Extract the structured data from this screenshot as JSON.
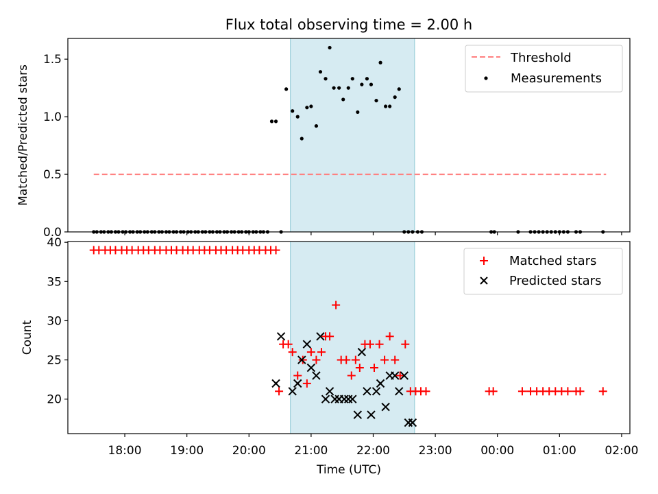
{
  "chart_data": [
    {
      "type": "scatter",
      "title": "Flux total observing time = 2.00 h",
      "xlabel": "",
      "ylabel": "Matched/Predicted stars",
      "xlim": [
        "17:05",
        "26:08"
      ],
      "ylim": [
        0,
        1.68
      ],
      "yticks": [
        0.0,
        0.5,
        1.0,
        1.5
      ],
      "ytick_labels": [
        "0.0",
        "0.5",
        "1.0",
        "1.5"
      ],
      "shaded_region": {
        "from": "20:40",
        "to": "22:40",
        "color": "#add8e6"
      },
      "legend_position": "top-right",
      "legend": [
        "Threshold",
        "Measurements"
      ],
      "threshold": {
        "name": "Threshold",
        "value": 0.5,
        "from": "17:30",
        "to": "25:45",
        "color": "#ff7f7f"
      },
      "series": [
        {
          "name": "Measurements",
          "color": "#000000",
          "x": [
            "17:30",
            "17:33",
            "17:37",
            "17:40",
            "17:44",
            "17:47",
            "17:51",
            "17:54",
            "17:58",
            "18:01",
            "18:05",
            "18:08",
            "18:12",
            "18:15",
            "18:19",
            "18:22",
            "18:26",
            "18:29",
            "18:33",
            "18:36",
            "18:40",
            "18:43",
            "18:47",
            "18:50",
            "18:54",
            "18:57",
            "19:01",
            "19:04",
            "19:08",
            "19:11",
            "19:15",
            "19:18",
            "19:22",
            "19:25",
            "19:29",
            "19:32",
            "19:36",
            "19:39",
            "19:43",
            "19:46",
            "19:50",
            "19:53",
            "19:57",
            "20:00",
            "20:04",
            "20:07",
            "20:11",
            "20:14",
            "20:18",
            "20:22",
            "20:26",
            "20:31",
            "20:36",
            "20:42",
            "20:47",
            "20:51",
            "20:56",
            "21:00",
            "21:05",
            "21:09",
            "21:14",
            "21:18",
            "21:22",
            "21:27",
            "21:31",
            "21:36",
            "21:40",
            "21:45",
            "21:49",
            "21:54",
            "21:58",
            "22:03",
            "22:07",
            "22:12",
            "22:16",
            "22:21",
            "22:25",
            "22:30",
            "22:34",
            "22:38",
            "22:43",
            "22:47",
            "23:54",
            "23:57",
            "24:20",
            "24:32",
            "24:36",
            "24:40",
            "24:44",
            "24:48",
            "24:52",
            "24:56",
            "25:00",
            "25:04",
            "25:08",
            "25:16",
            "25:20",
            "25:42"
          ],
          "y": [
            0,
            0,
            0,
            0,
            0,
            0,
            0,
            0,
            0,
            0,
            0,
            0,
            0,
            0,
            0,
            0,
            0,
            0,
            0,
            0,
            0,
            0,
            0,
            0,
            0,
            0,
            0,
            0,
            0,
            0,
            0,
            0,
            0,
            0,
            0,
            0,
            0,
            0,
            0,
            0,
            0,
            0,
            0,
            0,
            0,
            0,
            0,
            0,
            0,
            0.96,
            0.96,
            0,
            1.24,
            1.05,
            1.0,
            0.81,
            1.08,
            1.09,
            0.92,
            1.39,
            1.33,
            1.6,
            1.25,
            1.25,
            1.15,
            1.25,
            1.33,
            1.04,
            1.28,
            1.33,
            1.28,
            1.14,
            1.47,
            1.09,
            1.09,
            1.17,
            1.24,
            0,
            0,
            0,
            0,
            0,
            0,
            0,
            0,
            0,
            0,
            0,
            0,
            0,
            0,
            0,
            0,
            0,
            0,
            0,
            0,
            0
          ]
        }
      ]
    },
    {
      "type": "scatter",
      "title": "",
      "xlabel": "Time (UTC)",
      "ylabel": "Count",
      "xlim": [
        "17:05",
        "26:08"
      ],
      "ylim": [
        15.6,
        40.1
      ],
      "yticks": [
        20,
        25,
        30,
        35,
        40
      ],
      "ytick_labels": [
        "20",
        "25",
        "30",
        "35",
        "40"
      ],
      "xticks": [
        "18:00",
        "19:00",
        "20:00",
        "21:00",
        "22:00",
        "23:00",
        "24:00",
        "25:00",
        "26:00"
      ],
      "xtick_labels": [
        "18:00",
        "19:00",
        "20:00",
        "21:00",
        "22:00",
        "23:00",
        "00:00",
        "01:00",
        "02:00"
      ],
      "shaded_region": {
        "from": "20:40",
        "to": "22:40",
        "color": "#add8e6"
      },
      "legend_position": "top-right",
      "legend": [
        "Matched stars",
        "Predicted stars"
      ],
      "series": [
        {
          "name": "Matched stars",
          "marker": "plus",
          "color": "#ff0000",
          "x": [
            "17:30",
            "17:35",
            "17:41",
            "17:46",
            "17:51",
            "17:57",
            "18:02",
            "18:07",
            "18:13",
            "18:18",
            "18:23",
            "18:29",
            "18:34",
            "18:40",
            "18:45",
            "18:50",
            "18:56",
            "19:01",
            "19:06",
            "19:12",
            "19:17",
            "19:22",
            "19:28",
            "19:33",
            "19:38",
            "19:44",
            "19:49",
            "19:54",
            "20:00",
            "20:05",
            "20:10",
            "20:16",
            "20:21",
            "20:26",
            "20:29",
            "20:33",
            "20:38",
            "20:42",
            "20:47",
            "20:52",
            "20:56",
            "21:00",
            "21:05",
            "21:10",
            "21:14",
            "21:18",
            "21:24",
            "21:29",
            "21:34",
            "21:39",
            "21:43",
            "21:47",
            "21:52",
            "21:57",
            "22:01",
            "22:06",
            "22:11",
            "22:16",
            "22:21",
            "22:26",
            "22:31",
            "22:36",
            "22:41",
            "22:46",
            "22:51",
            "23:52",
            "23:56",
            "24:24",
            "24:32",
            "24:38",
            "24:44",
            "24:50",
            "24:56",
            "25:02",
            "25:08",
            "25:16",
            "25:20",
            "25:42"
          ],
          "y": [
            39,
            39,
            39,
            39,
            39,
            39,
            39,
            39,
            39,
            39,
            39,
            39,
            39,
            39,
            39,
            39,
            39,
            39,
            39,
            39,
            39,
            39,
            39,
            39,
            39,
            39,
            39,
            39,
            39,
            39,
            39,
            39,
            39,
            39,
            21,
            27,
            27,
            26,
            23,
            25,
            22,
            26,
            25,
            26,
            28,
            28,
            32,
            25,
            25,
            23,
            25,
            24,
            27,
            27,
            24,
            27,
            25,
            28,
            25,
            23,
            27,
            21,
            21,
            21,
            21,
            21,
            21,
            21,
            21,
            21,
            21,
            21,
            21,
            21,
            21,
            21,
            21,
            21
          ]
        },
        {
          "name": "Predicted stars",
          "marker": "x",
          "color": "#000000",
          "x": [
            "20:26",
            "20:31",
            "20:42",
            "20:47",
            "20:51",
            "20:56",
            "21:00",
            "21:05",
            "21:09",
            "21:14",
            "21:18",
            "21:23",
            "21:27",
            "21:32",
            "21:36",
            "21:40",
            "21:45",
            "21:49",
            "21:54",
            "21:58",
            "22:03",
            "22:07",
            "22:12",
            "22:16",
            "22:21",
            "22:25",
            "22:30",
            "22:34",
            "22:38"
          ],
          "y": [
            22,
            28,
            21,
            22,
            25,
            27,
            24,
            23,
            28,
            20,
            21,
            20,
            20,
            20,
            20,
            20,
            18,
            26,
            21,
            18,
            21,
            22,
            19,
            23,
            23,
            21,
            23,
            17,
            17
          ]
        }
      ]
    }
  ]
}
